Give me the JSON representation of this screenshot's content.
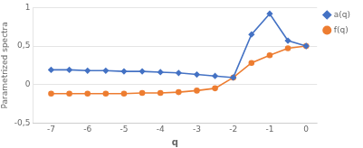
{
  "chart_data": {
    "type": "line",
    "x": [
      -7,
      -6.5,
      -6,
      -5.5,
      -5,
      -4.5,
      -4,
      -3.5,
      -3,
      -2.5,
      -2,
      -1.5,
      -1,
      -0.5,
      0
    ],
    "series": [
      {
        "name": "a(q)",
        "color": "#4472c4",
        "marker": "diamond",
        "values": [
          0.19,
          0.19,
          0.18,
          0.18,
          0.17,
          0.17,
          0.16,
          0.15,
          0.13,
          0.11,
          0.09,
          0.65,
          0.92,
          0.57,
          0.5
        ]
      },
      {
        "name": "f(q)",
        "color": "#ed7d31",
        "marker": "circle",
        "values": [
          -0.12,
          -0.12,
          -0.12,
          -0.12,
          -0.12,
          -0.11,
          -0.11,
          -0.1,
          -0.08,
          -0.05,
          0.09,
          0.28,
          0.38,
          0.47,
          0.5
        ]
      }
    ],
    "xlabel": "q",
    "ylabel": "Parametrized spectra",
    "xlim": [
      -7.5,
      0.3
    ],
    "ylim": [
      -0.5,
      1.0
    ],
    "xticks": [
      -7,
      -6,
      -5,
      -4,
      -3,
      -2,
      -1,
      0
    ],
    "yticks": [
      {
        "value": -0.5,
        "label": "-0,5"
      },
      0,
      {
        "value": 0.5,
        "label": "0,5"
      },
      1
    ],
    "grid": "y",
    "legend": "right"
  }
}
